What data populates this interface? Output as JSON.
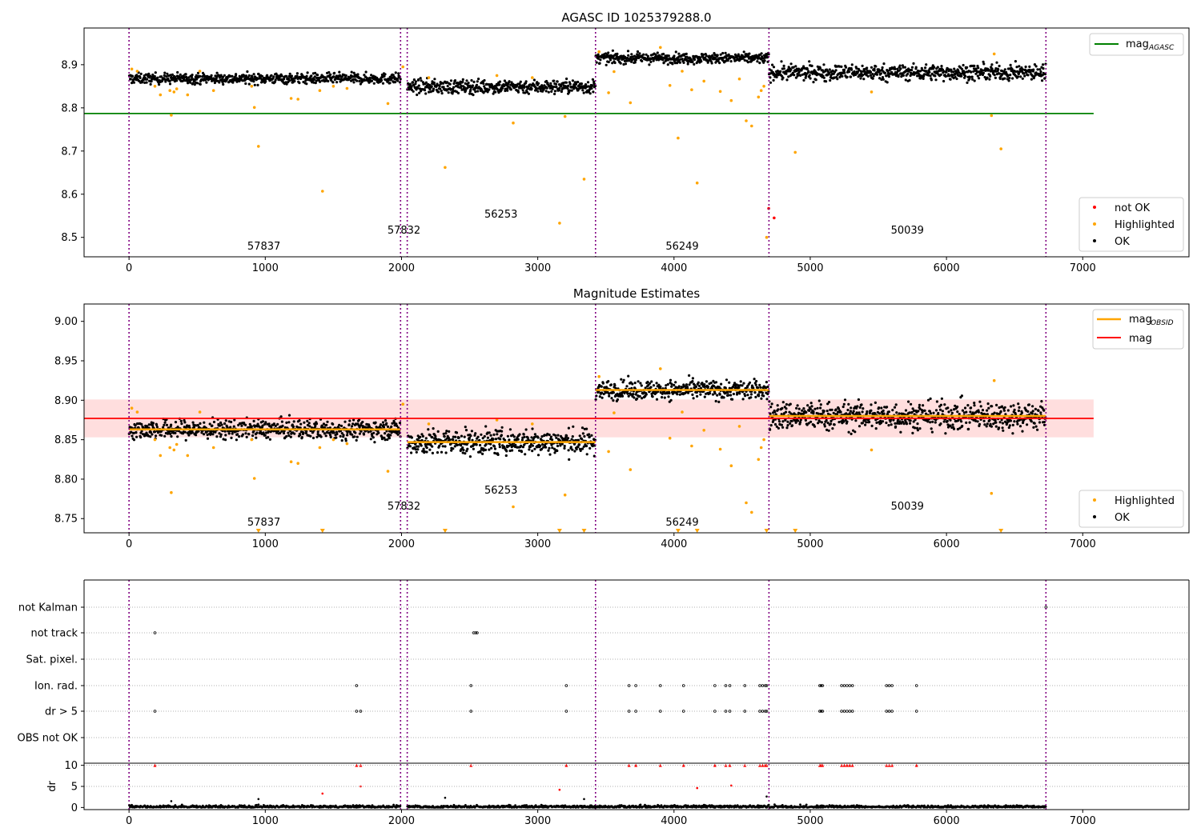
{
  "obsid_markers": [
    0,
    1993,
    2042,
    3424,
    4697,
    6730
  ],
  "obsid_labels": [
    {
      "x": 990,
      "text": "57837"
    },
    {
      "x": 2018,
      "text": "57832"
    },
    {
      "x": 2730,
      "text": "56253"
    },
    {
      "x": 4060,
      "text": "56249"
    },
    {
      "x": 5713,
      "text": "50039"
    }
  ],
  "segments": [
    {
      "x": [
        0,
        1993
      ],
      "mean_top": 8.868,
      "mean_mid": 8.863,
      "spread": 0.006
    },
    {
      "x": [
        2042,
        3424
      ],
      "mean_top": 8.849,
      "mean_mid": 8.847,
      "spread": 0.008
    },
    {
      "x": [
        3424,
        4697
      ],
      "mean_top": 8.915,
      "mean_mid": 8.913,
      "spread": 0.006
    },
    {
      "x": [
        4697,
        6730
      ],
      "mean_top": 8.882,
      "mean_mid": 8.88,
      "spread": 0.009
    }
  ],
  "highlighted_points": [
    [
      20,
      8.89
    ],
    [
      60,
      8.885
    ],
    [
      190,
      8.85
    ],
    [
      230,
      8.83
    ],
    [
      300,
      8.84
    ],
    [
      310,
      8.783
    ],
    [
      330,
      8.837
    ],
    [
      350,
      8.844
    ],
    [
      430,
      8.83
    ],
    [
      520,
      8.885
    ],
    [
      620,
      8.84
    ],
    [
      900,
      8.85
    ],
    [
      920,
      8.801
    ],
    [
      950,
      8.711
    ],
    [
      1190,
      8.822
    ],
    [
      1240,
      8.82
    ],
    [
      1400,
      8.84
    ],
    [
      1420,
      8.607
    ],
    [
      1500,
      8.85
    ],
    [
      1600,
      8.845
    ],
    [
      1900,
      8.81
    ],
    [
      2010,
      8.895
    ],
    [
      2200,
      8.87
    ],
    [
      2320,
      8.662
    ],
    [
      2700,
      8.875
    ],
    [
      2820,
      8.765
    ],
    [
      2960,
      8.87
    ],
    [
      3160,
      8.533
    ],
    [
      3200,
      8.78
    ],
    [
      3340,
      8.635
    ],
    [
      3450,
      8.93
    ],
    [
      3520,
      8.835
    ],
    [
      3560,
      8.884
    ],
    [
      3680,
      8.812
    ],
    [
      3900,
      8.94
    ],
    [
      3970,
      8.852
    ],
    [
      4030,
      8.73
    ],
    [
      4060,
      8.885
    ],
    [
      4130,
      8.842
    ],
    [
      4170,
      8.626
    ],
    [
      4220,
      8.862
    ],
    [
      4340,
      8.838
    ],
    [
      4420,
      8.817
    ],
    [
      4480,
      8.867
    ],
    [
      4530,
      8.77
    ],
    [
      4570,
      8.758
    ],
    [
      4620,
      8.825
    ],
    [
      4640,
      8.84
    ],
    [
      4660,
      8.85
    ],
    [
      4680,
      8.5
    ],
    [
      4890,
      8.697
    ],
    [
      5450,
      8.837
    ],
    [
      6330,
      8.782
    ],
    [
      6400,
      8.705
    ],
    [
      6350,
      8.925
    ]
  ],
  "not_ok_points": [
    [
      4695,
      8.567
    ],
    [
      4735,
      8.545
    ]
  ],
  "flag_events": {
    "not_track": [
      190,
      2530,
      2545,
      2555
    ],
    "ion_rad": [
      1670,
      2510,
      3210,
      3670,
      3720,
      3900,
      4070,
      4300,
      4380,
      4410,
      4520,
      4630,
      4650,
      4670,
      4680,
      5070,
      5080,
      5090,
      5230,
      5250,
      5270,
      5290,
      5310,
      5560,
      5580,
      5600,
      5780
    ],
    "dr_gt_5": [
      190,
      1670,
      1700,
      2510,
      3210,
      3670,
      3720,
      3900,
      4070,
      4300,
      4380,
      4410,
      4520,
      4630,
      4650,
      4670,
      4680,
      5070,
      5080,
      5090,
      5230,
      5250,
      5270,
      5290,
      5310,
      5560,
      5580,
      5600,
      5780
    ],
    "dr_spikes": [
      [
        310,
        1.5
      ],
      [
        950,
        2.0
      ],
      [
        1420,
        3.3
      ],
      [
        1700,
        5.0
      ],
      [
        2320,
        2.3
      ],
      [
        3160,
        4.2
      ],
      [
        3340,
        2.0
      ],
      [
        4170,
        4.6
      ],
      [
        4420,
        5.2
      ],
      [
        4680,
        2.6
      ]
    ]
  },
  "chart_data": [
    {
      "type": "scatter",
      "title": "AGASC ID 1025379288.0",
      "xlim": [
        -330,
        7780
      ],
      "ylim": [
        8.455,
        8.985
      ],
      "xticks": [
        0,
        1000,
        2000,
        3000,
        4000,
        5000,
        6000,
        7000
      ],
      "yticks": [
        8.5,
        8.6,
        8.7,
        8.8,
        8.9
      ],
      "reference_lines": [
        {
          "name": "mag_AGASC",
          "y": 8.787,
          "x": [
            -330,
            7080
          ],
          "color": "#008000"
        }
      ],
      "series": [
        {
          "name": "not OK",
          "color": "#ff0000"
        },
        {
          "name": "Highlighted",
          "color": "#ffa500"
        },
        {
          "name": "OK",
          "color": "#000000"
        }
      ],
      "legend_upper": "top-right",
      "legend_lower": "bottom-right"
    },
    {
      "type": "scatter",
      "title": "Magnitude Estimates",
      "xlim": [
        -330,
        7780
      ],
      "ylim": [
        8.732,
        9.022
      ],
      "xticks": [
        0,
        1000,
        2000,
        3000,
        4000,
        5000,
        6000,
        7000
      ],
      "yticks": [
        8.75,
        8.8,
        8.85,
        8.9,
        8.95,
        9.0
      ],
      "reference_lines": [
        {
          "name": "mag",
          "y": 8.877,
          "x": [
            -330,
            7080
          ],
          "color": "#ff0000"
        }
      ],
      "band": {
        "y": [
          8.853,
          8.901
        ],
        "x": [
          -330,
          7080
        ],
        "color": "#ffdede"
      },
      "obsid_means": [
        {
          "x": [
            0,
            1993
          ],
          "y": 8.863
        },
        {
          "x": [
            2042,
            3424
          ],
          "y": 8.847
        },
        {
          "x": [
            3424,
            4697
          ],
          "y": 8.913
        },
        {
          "x": [
            4697,
            6730
          ],
          "y": 8.88
        }
      ],
      "series": [
        {
          "name": "Highlighted",
          "color": "#ffa500"
        },
        {
          "name": "OK",
          "color": "#000000"
        }
      ],
      "legend_upper": "top-right",
      "legend_lower": "bottom-right"
    },
    {
      "type": "scatter",
      "xlim": [
        -330,
        7780
      ],
      "xticks": [
        0,
        1000,
        2000,
        3000,
        4000,
        5000,
        6000,
        7000
      ],
      "flag_categories": [
        "not Kalman",
        "not track",
        "Sat. pixel.",
        "Ion. rad.",
        "dr > 5",
        "OBS not OK"
      ],
      "dr_panel": {
        "ylabel": "dr",
        "ylim": [
          -0.5,
          10.5
        ],
        "yticks": [
          0,
          5,
          10
        ]
      }
    }
  ],
  "legend": {
    "top_ref": {
      "label": "mag",
      "sub": "AGASC"
    },
    "top_items": [
      "not OK",
      "Highlighted",
      "OK"
    ],
    "mid_ref": [
      {
        "label": "mag",
        "sub": "OBSID"
      },
      {
        "label": "mag",
        "sub": ""
      }
    ],
    "mid_items": [
      "Highlighted",
      "OK"
    ]
  }
}
